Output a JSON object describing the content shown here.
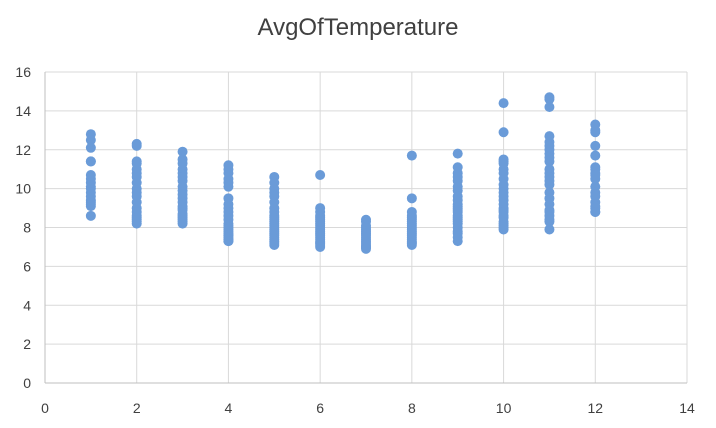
{
  "chart_data": {
    "type": "scatter",
    "title": "AvgOfTemperature",
    "xlabel": "",
    "ylabel": "",
    "xlim": [
      0,
      14
    ],
    "ylim": [
      0,
      16
    ],
    "x_ticks": [
      0,
      2,
      4,
      6,
      8,
      10,
      12,
      14
    ],
    "y_ticks": [
      0,
      2,
      4,
      6,
      8,
      10,
      12,
      14,
      16
    ],
    "grid": "both",
    "legend": "none",
    "marker_color": "#6a9bd8",
    "series": [
      {
        "x": [
          1,
          1,
          1,
          1,
          1,
          1,
          1,
          1,
          1,
          1,
          1,
          1,
          1,
          1,
          1,
          1,
          1,
          2,
          2,
          2,
          2,
          2,
          2,
          2,
          2,
          2,
          2,
          2,
          2,
          2,
          2,
          2,
          2,
          2,
          2,
          2,
          3,
          3,
          3,
          3,
          3,
          3,
          3,
          3,
          3,
          3,
          3,
          3,
          3,
          3,
          3,
          3,
          3,
          3,
          3,
          3,
          3,
          4,
          4,
          4,
          4,
          4,
          4,
          4,
          4,
          4,
          4,
          4,
          4,
          4,
          4,
          4,
          4,
          4,
          4,
          4,
          4,
          4,
          4,
          4,
          4,
          4,
          5,
          5,
          5,
          5,
          5,
          5,
          5,
          5,
          5,
          5,
          5,
          5,
          5,
          5,
          5,
          5,
          5,
          5,
          5,
          5,
          5,
          5,
          5,
          5,
          6,
          6,
          6,
          6,
          6,
          6,
          6,
          6,
          6,
          6,
          6,
          6,
          6,
          6,
          6,
          6,
          6,
          6,
          6,
          6,
          6,
          7,
          7,
          7,
          7,
          7,
          7,
          7,
          7,
          7,
          7,
          7,
          7,
          7,
          7,
          7,
          7,
          8,
          8,
          8,
          8,
          8,
          8,
          8,
          8,
          8,
          8,
          8,
          8,
          8,
          8,
          8,
          8,
          8,
          8,
          8,
          8,
          9,
          9,
          9,
          9,
          9,
          9,
          9,
          9,
          9,
          9,
          9,
          9,
          9,
          9,
          9,
          9,
          9,
          9,
          9,
          9,
          9,
          9,
          9,
          9,
          10,
          10,
          10,
          10,
          10,
          10,
          10,
          10,
          10,
          10,
          10,
          10,
          10,
          10,
          10,
          10,
          10,
          10,
          10,
          10,
          10,
          10,
          10,
          10,
          11,
          11,
          11,
          11,
          11,
          11,
          11,
          11,
          11,
          11,
          11,
          11,
          11,
          11,
          11,
          11,
          11,
          11,
          11,
          11,
          11,
          11,
          11,
          11,
          12,
          12,
          12,
          12,
          12,
          12,
          12,
          12,
          12,
          12,
          12,
          12,
          12,
          12,
          12,
          12,
          12,
          12
        ],
        "y": [
          12.8,
          12.5,
          12.1,
          11.4,
          11.4,
          10.7,
          10.5,
          10.3,
          10.1,
          10.0,
          9.8,
          9.6,
          9.4,
          9.3,
          9.2,
          9.1,
          8.6,
          12.3,
          12.2,
          11.4,
          11.3,
          11.0,
          10.8,
          10.6,
          10.3,
          10.0,
          9.8,
          9.6,
          9.3,
          9.0,
          8.8,
          8.6,
          8.5,
          8.4,
          8.3,
          8.2,
          11.9,
          11.5,
          11.3,
          11.0,
          10.8,
          10.6,
          10.4,
          10.1,
          9.9,
          9.7,
          9.5,
          9.3,
          9.1,
          9.0,
          8.9,
          8.7,
          8.6,
          8.5,
          8.4,
          8.3,
          8.2,
          11.2,
          11.0,
          10.8,
          10.5,
          10.3,
          10.1,
          9.5,
          9.2,
          9.0,
          8.8,
          8.6,
          8.4,
          8.2,
          8.1,
          8.0,
          7.9,
          7.8,
          7.7,
          7.6,
          7.6,
          7.5,
          7.4,
          7.4,
          7.3,
          7.3,
          10.6,
          10.3,
          10.0,
          9.8,
          9.6,
          9.3,
          9.0,
          8.8,
          8.6,
          8.5,
          8.4,
          8.3,
          8.2,
          8.1,
          8.0,
          7.9,
          7.8,
          7.7,
          7.6,
          7.5,
          7.4,
          7.3,
          7.2,
          7.1,
          10.7,
          9.0,
          8.8,
          8.6,
          8.5,
          8.4,
          8.3,
          8.2,
          8.1,
          8.0,
          7.9,
          7.8,
          7.7,
          7.6,
          7.5,
          7.4,
          7.3,
          7.2,
          7.2,
          7.1,
          7.0,
          8.4,
          8.3,
          8.1,
          8.0,
          7.9,
          7.8,
          7.7,
          7.6,
          7.5,
          7.4,
          7.3,
          7.2,
          7.1,
          7.0,
          7.0,
          6.9,
          11.7,
          9.5,
          8.8,
          8.6,
          8.5,
          8.4,
          8.3,
          8.2,
          8.1,
          8.0,
          7.9,
          7.8,
          7.7,
          7.6,
          7.5,
          7.4,
          7.3,
          7.2,
          7.2,
          7.1,
          11.8,
          11.1,
          10.8,
          10.6,
          10.4,
          10.1,
          9.9,
          9.6,
          9.4,
          9.2,
          9.1,
          9.0,
          8.9,
          8.8,
          8.6,
          8.5,
          8.4,
          8.3,
          8.2,
          8.0,
          7.8,
          7.7,
          7.5,
          7.3,
          14.4,
          12.9,
          11.5,
          11.4,
          11.3,
          11.0,
          10.8,
          10.5,
          10.2,
          10.0,
          9.8,
          9.6,
          9.4,
          9.2,
          9.0,
          8.9,
          8.8,
          8.6,
          8.5,
          8.3,
          8.2,
          8.1,
          8.0,
          7.9,
          14.7,
          14.6,
          14.2,
          12.7,
          12.4,
          12.2,
          12.0,
          11.8,
          11.6,
          11.4,
          11.0,
          10.8,
          10.6,
          10.4,
          10.2,
          9.8,
          9.5,
          9.2,
          8.9,
          8.8,
          8.6,
          8.4,
          8.3,
          7.9,
          13.3,
          13.0,
          12.9,
          12.2,
          11.7,
          11.1,
          11.0,
          10.8,
          10.7,
          10.5,
          10.1,
          9.8,
          9.6,
          9.3,
          9.1,
          9.0,
          8.8,
          8.8
        ]
      }
    ]
  }
}
